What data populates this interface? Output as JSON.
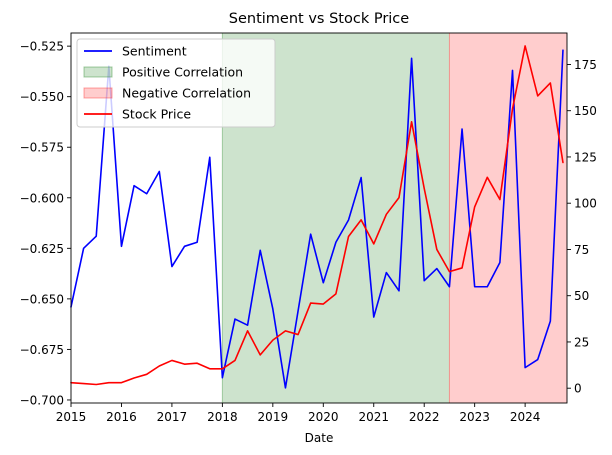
{
  "chart_data": {
    "type": "line",
    "title": "Sentiment vs Stock Price",
    "xlabel": "Date",
    "ylabel_left": "",
    "ylabel_right": "",
    "xlim": [
      2015.0,
      2024.83
    ],
    "ylim_left": [
      -0.7015,
      -0.5185
    ],
    "ylim_right": [
      -8,
      192
    ],
    "x_ticks": [
      2015,
      2016,
      2017,
      2018,
      2019,
      2020,
      2021,
      2022,
      2023,
      2024
    ],
    "y_ticks_left": [
      -0.7,
      -0.675,
      -0.65,
      -0.625,
      -0.6,
      -0.575,
      -0.55,
      -0.525
    ],
    "y_ticks_right": [
      0,
      25,
      50,
      75,
      100,
      125,
      150,
      175
    ],
    "grid": false,
    "legend_position": "top-left",
    "spans": [
      {
        "name": "Positive Correlation",
        "x_start": 2018.0,
        "x_end": 2022.5,
        "color": "#2e8b2e",
        "opacity": 0.24
      },
      {
        "name": "Negative Correlation",
        "x_start": 2022.5,
        "x_end": 2024.83,
        "color": "#ff1a1a",
        "opacity": 0.22
      }
    ],
    "series": [
      {
        "name": "Sentiment",
        "axis": "left",
        "color": "#0000ff",
        "x": [
          2015.0,
          2015.25,
          2015.5,
          2015.75,
          2016.0,
          2016.25,
          2016.5,
          2016.75,
          2017.0,
          2017.25,
          2017.5,
          2017.75,
          2018.0,
          2018.25,
          2018.5,
          2018.75,
          2019.0,
          2019.25,
          2019.5,
          2019.75,
          2020.0,
          2020.25,
          2020.5,
          2020.75,
          2021.0,
          2021.25,
          2021.5,
          2021.75,
          2022.0,
          2022.25,
          2022.5,
          2022.75,
          2023.0,
          2023.25,
          2023.5,
          2023.75,
          2024.0,
          2024.25,
          2024.5,
          2024.75
        ],
        "values": [
          -0.654,
          -0.625,
          -0.619,
          -0.535,
          -0.624,
          -0.594,
          -0.598,
          -0.587,
          -0.634,
          -0.624,
          -0.622,
          -0.58,
          -0.689,
          -0.66,
          -0.663,
          -0.626,
          -0.655,
          -0.694,
          -0.656,
          -0.618,
          -0.642,
          -0.622,
          -0.611,
          -0.59,
          -0.659,
          -0.637,
          -0.646,
          -0.531,
          -0.641,
          -0.635,
          -0.644,
          -0.566,
          -0.644,
          -0.644,
          -0.632,
          -0.537,
          -0.684,
          -0.68,
          -0.661,
          -0.527
        ]
      },
      {
        "name": "Stock Price",
        "axis": "right",
        "color": "#ff0000",
        "x": [
          2015.0,
          2015.25,
          2015.5,
          2015.75,
          2016.0,
          2016.25,
          2016.5,
          2016.75,
          2017.0,
          2017.25,
          2017.5,
          2017.75,
          2018.0,
          2018.25,
          2018.5,
          2018.75,
          2019.0,
          2019.25,
          2019.5,
          2019.75,
          2020.0,
          2020.25,
          2020.5,
          2020.75,
          2021.0,
          2021.25,
          2021.5,
          2021.75,
          2022.0,
          2022.25,
          2022.5,
          2022.75,
          2023.0,
          2023.25,
          2023.5,
          2023.75,
          2024.0,
          2024.25,
          2024.5,
          2024.75
        ],
        "values": [
          3,
          2.5,
          2,
          3,
          3,
          5.5,
          7.5,
          12,
          15,
          13,
          13.5,
          10.5,
          10.5,
          15,
          31,
          18,
          26,
          31,
          29,
          46,
          45.5,
          51,
          82,
          91,
          78,
          94,
          103,
          144,
          108,
          75,
          63,
          65,
          98,
          114,
          102,
          151,
          185,
          158,
          165,
          122
        ]
      }
    ]
  }
}
